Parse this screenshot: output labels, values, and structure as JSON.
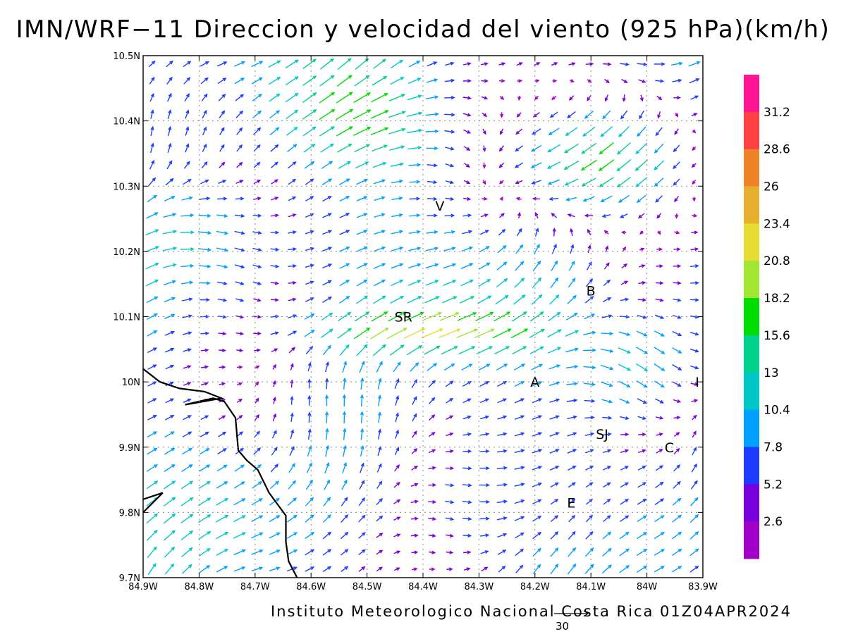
{
  "title": "IMN/WRF−11 Direccion y velocidad del viento (925 hPa)(km/h)",
  "footer": "Instituto Meteorologico Nacional Costa Rica 01Z04APR2024",
  "reference_vector": {
    "value": "30"
  },
  "map": {
    "lon_ticks": [
      "84.9W",
      "84.8W",
      "84.7W",
      "84.6W",
      "84.5W",
      "84.4W",
      "84.3W",
      "84.2W",
      "84.1W",
      "84W",
      "83.9W"
    ],
    "lat_ticks": [
      "10.5N",
      "10.4N",
      "10.3N",
      "10.2N",
      "10.1N",
      "10N",
      "9.9N",
      "9.8N",
      "9.7N"
    ],
    "lon_range": [
      -84.9,
      -83.9
    ],
    "lat_range": [
      9.7,
      10.5
    ],
    "grid": true,
    "places": [
      {
        "label": "V",
        "lon": -84.37,
        "lat": 10.27
      },
      {
        "label": "B",
        "lon": -84.1,
        "lat": 10.14
      },
      {
        "label": "SR",
        "lon": -84.435,
        "lat": 10.1
      },
      {
        "label": "A",
        "lon": -84.2,
        "lat": 10.0
      },
      {
        "label": "I",
        "lon": -83.91,
        "lat": 10.0
      },
      {
        "label": "SJ",
        "lon": -84.08,
        "lat": 9.92
      },
      {
        "label": "C",
        "lon": -83.96,
        "lat": 9.9
      },
      {
        "label": "E",
        "lon": -84.135,
        "lat": 9.815
      }
    ]
  },
  "colorbar": {
    "labels": [
      "31.2",
      "28.6",
      "26",
      "23.4",
      "20.8",
      "18.2",
      "15.6",
      "13",
      "10.4",
      "7.8",
      "5.2",
      "2.6"
    ],
    "colors": [
      "#ff1493",
      "#ff4040",
      "#f08228",
      "#e6af2d",
      "#e6dc32",
      "#a0e632",
      "#00dc00",
      "#00d28c",
      "#00c8c8",
      "#00a0ff",
      "#1e3cff",
      "#7800dc",
      "#a000c8"
    ]
  }
}
